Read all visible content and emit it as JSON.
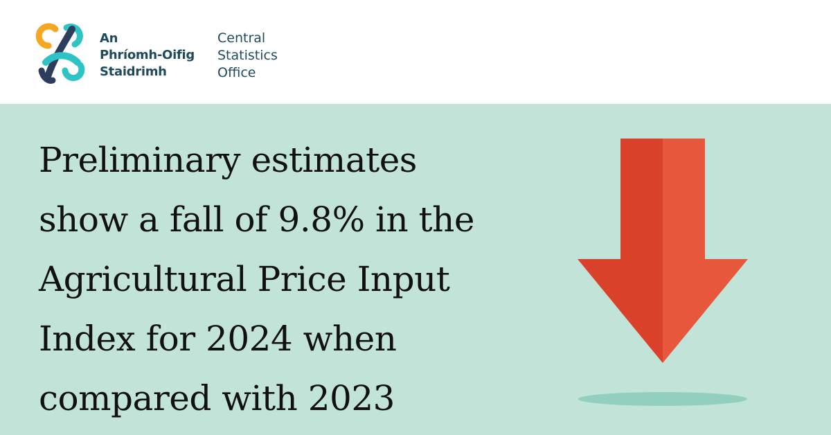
{
  "header": {
    "irish_name": [
      "An",
      "Phríomh-Oifig",
      "Staidrimh"
    ],
    "english_name": [
      "Central",
      "Statistics",
      "Office"
    ]
  },
  "banner": {
    "headline_lines": [
      "Preliminary estimates",
      "show a fall of 9.8% in the",
      "Agricultural Price Input",
      "Index for 2024 when",
      "compared with 2023"
    ],
    "arrow_direction": "down"
  },
  "colors": {
    "banner_background": "#c2e4d8",
    "brand_text": "#1f4a5e",
    "arrow_dark": "#d9412b",
    "arrow_light": "#e6573c",
    "arrow_shadow": "#93cfbf",
    "logo_orange": "#f5a623",
    "logo_teal": "#2ec4c6",
    "logo_navy": "#2d3e5c"
  },
  "icons": {
    "logo": "cso-logo-mark",
    "arrow": "down-arrow-icon"
  }
}
